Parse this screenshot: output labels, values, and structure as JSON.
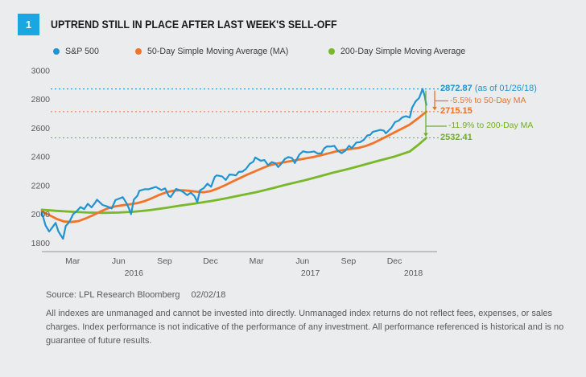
{
  "figure": {
    "number": "1"
  },
  "header": {
    "title": "UPTREND STILL IN PLACE AFTER LAST WEEK'S SELL-OFF"
  },
  "footer": {
    "source": "Source: LPL Research Bloomberg",
    "source_date": "02/02/18",
    "disclaimer": "All indexes are unmanaged and cannot be invested into directly. Unmanaged index returns do not reflect fees, expenses, or sales charges. Index performance is not indicative of the performance of any investment. All performance referenced is historical and is no guarantee of future results."
  },
  "colors": {
    "sp500": "#1e94d2",
    "ma50": "#f0742a",
    "ma200": "#79b829",
    "figure_box": "#18a7e0",
    "axis_text": "#58595b",
    "axis_line": "#a4a6a9",
    "background": "#ebeced"
  },
  "chart_data": {
    "type": "line",
    "title": "UPTREND STILL IN PLACE AFTER LAST WEEK'S SELL-OFF",
    "xlabel": "",
    "ylabel": "",
    "legend_position": "top",
    "grid": false,
    "x_domain": [
      2016.0,
      2018.12
    ],
    "y_domain": [
      1740,
      3000
    ],
    "y_ticks": [
      3000,
      2800,
      2600,
      2400,
      2200,
      2000,
      1800
    ],
    "x_ticks": [
      {
        "t": 2016.167,
        "label": "Mar"
      },
      {
        "t": 2016.417,
        "label": "Jun"
      },
      {
        "t": 2016.667,
        "label": "Sep"
      },
      {
        "t": 2016.917,
        "label": "Dec"
      },
      {
        "t": 2017.167,
        "label": "Mar"
      },
      {
        "t": 2017.417,
        "label": "Jun"
      },
      {
        "t": 2017.667,
        "label": "Sep"
      },
      {
        "t": 2017.917,
        "label": "Dec"
      }
    ],
    "year_labels": [
      {
        "t": 2016.5,
        "label": "2016"
      },
      {
        "t": 2017.46,
        "label": "2017"
      },
      {
        "t": 2018.02,
        "label": "2018"
      }
    ],
    "levels": [
      {
        "value": 2872.87,
        "color": "#1e94d2",
        "label": "2872.87",
        "suffix": " (as of 01/26/18)"
      },
      {
        "value": 2715.15,
        "color": "#ef7028",
        "label": "2715.15",
        "pct": "-5.5% to 50-Day MA"
      },
      {
        "value": 2532.41,
        "color": "#6fae27",
        "label": "2532.41",
        "pct": "-11.9% to 200-Day MA"
      }
    ],
    "series": [
      {
        "name": "S&P 500",
        "color": "#1e94d2",
        "width": 2.2,
        "points": [
          [
            2016.0,
            2012
          ],
          [
            2016.02,
            1922
          ],
          [
            2016.04,
            1880
          ],
          [
            2016.055,
            1906
          ],
          [
            2016.075,
            1940
          ],
          [
            2016.09,
            1880
          ],
          [
            2016.115,
            1829
          ],
          [
            2016.13,
            1918
          ],
          [
            2016.15,
            1948
          ],
          [
            2016.17,
            2000
          ],
          [
            2016.19,
            2022
          ],
          [
            2016.21,
            2050
          ],
          [
            2016.23,
            2036
          ],
          [
            2016.25,
            2073
          ],
          [
            2016.27,
            2048
          ],
          [
            2016.29,
            2081
          ],
          [
            2016.3,
            2102
          ],
          [
            2016.33,
            2065
          ],
          [
            2016.35,
            2057
          ],
          [
            2016.37,
            2047
          ],
          [
            2016.38,
            2040
          ],
          [
            2016.4,
            2099
          ],
          [
            2016.42,
            2109
          ],
          [
            2016.44,
            2119
          ],
          [
            2016.46,
            2078
          ],
          [
            2016.475,
            2037
          ],
          [
            2016.485,
            2001
          ],
          [
            2016.5,
            2103
          ],
          [
            2016.52,
            2130
          ],
          [
            2016.53,
            2164
          ],
          [
            2016.56,
            2175
          ],
          [
            2016.58,
            2174
          ],
          [
            2016.6,
            2183
          ],
          [
            2016.62,
            2190
          ],
          [
            2016.65,
            2169
          ],
          [
            2016.67,
            2180
          ],
          [
            2016.69,
            2128
          ],
          [
            2016.7,
            2120
          ],
          [
            2016.73,
            2177
          ],
          [
            2016.75,
            2168
          ],
          [
            2016.77,
            2154
          ],
          [
            2016.79,
            2133
          ],
          [
            2016.81,
            2151
          ],
          [
            2016.83,
            2126
          ],
          [
            2016.845,
            2085
          ],
          [
            2016.86,
            2167
          ],
          [
            2016.88,
            2182
          ],
          [
            2016.9,
            2213
          ],
          [
            2016.92,
            2192
          ],
          [
            2016.94,
            2260
          ],
          [
            2016.95,
            2271
          ],
          [
            2016.98,
            2264
          ],
          [
            2017.0,
            2239
          ],
          [
            2017.02,
            2277
          ],
          [
            2017.04,
            2275
          ],
          [
            2017.055,
            2271
          ],
          [
            2017.07,
            2295
          ],
          [
            2017.09,
            2297
          ],
          [
            2017.11,
            2316
          ],
          [
            2017.13,
            2351
          ],
          [
            2017.15,
            2367
          ],
          [
            2017.16,
            2396
          ],
          [
            2017.19,
            2373
          ],
          [
            2017.21,
            2378
          ],
          [
            2017.23,
            2342
          ],
          [
            2017.25,
            2363
          ],
          [
            2017.27,
            2355
          ],
          [
            2017.285,
            2329
          ],
          [
            2017.3,
            2349
          ],
          [
            2017.32,
            2384
          ],
          [
            2017.34,
            2399
          ],
          [
            2017.36,
            2391
          ],
          [
            2017.375,
            2357
          ],
          [
            2017.4,
            2416
          ],
          [
            2017.42,
            2439
          ],
          [
            2017.44,
            2432
          ],
          [
            2017.46,
            2433
          ],
          [
            2017.48,
            2438
          ],
          [
            2017.5,
            2423
          ],
          [
            2017.52,
            2425
          ],
          [
            2017.535,
            2459
          ],
          [
            2017.55,
            2473
          ],
          [
            2017.57,
            2472
          ],
          [
            2017.59,
            2477
          ],
          [
            2017.61,
            2441
          ],
          [
            2017.63,
            2426
          ],
          [
            2017.65,
            2443
          ],
          [
            2017.67,
            2477
          ],
          [
            2017.685,
            2461
          ],
          [
            2017.71,
            2500
          ],
          [
            2017.73,
            2502
          ],
          [
            2017.75,
            2519
          ],
          [
            2017.77,
            2549
          ],
          [
            2017.785,
            2553
          ],
          [
            2017.8,
            2575
          ],
          [
            2017.82,
            2581
          ],
          [
            2017.84,
            2588
          ],
          [
            2017.86,
            2582
          ],
          [
            2017.87,
            2564
          ],
          [
            2017.9,
            2602
          ],
          [
            2017.92,
            2642
          ],
          [
            2017.94,
            2652
          ],
          [
            2017.96,
            2676
          ],
          [
            2017.98,
            2683
          ],
          [
            2018.0,
            2674
          ],
          [
            2018.013,
            2743
          ],
          [
            2018.032,
            2786
          ],
          [
            2018.051,
            2810
          ],
          [
            2018.07,
            2873
          ],
          [
            2018.082,
            2822
          ],
          [
            2018.09,
            2762
          ]
        ]
      },
      {
        "name": "50-Day Simple Moving Average (MA)",
        "color": "#f0742a",
        "width": 2.8,
        "points": [
          [
            2016.0,
            2020
          ],
          [
            2016.04,
            1995
          ],
          [
            2016.08,
            1968
          ],
          [
            2016.12,
            1950
          ],
          [
            2016.16,
            1946
          ],
          [
            2016.2,
            1953
          ],
          [
            2016.24,
            1972
          ],
          [
            2016.28,
            1995
          ],
          [
            2016.32,
            2020
          ],
          [
            2016.36,
            2042
          ],
          [
            2016.4,
            2055
          ],
          [
            2016.44,
            2063
          ],
          [
            2016.48,
            2070
          ],
          [
            2016.52,
            2078
          ],
          [
            2016.56,
            2092
          ],
          [
            2016.6,
            2113
          ],
          [
            2016.64,
            2136
          ],
          [
            2016.68,
            2155
          ],
          [
            2016.72,
            2165
          ],
          [
            2016.76,
            2168
          ],
          [
            2016.8,
            2164
          ],
          [
            2016.84,
            2158
          ],
          [
            2016.88,
            2153
          ],
          [
            2016.92,
            2162
          ],
          [
            2016.96,
            2182
          ],
          [
            2017.0,
            2205
          ],
          [
            2017.04,
            2230
          ],
          [
            2017.08,
            2254
          ],
          [
            2017.12,
            2278
          ],
          [
            2017.16,
            2300
          ],
          [
            2017.2,
            2322
          ],
          [
            2017.24,
            2342
          ],
          [
            2017.28,
            2354
          ],
          [
            2017.32,
            2363
          ],
          [
            2017.36,
            2372
          ],
          [
            2017.4,
            2381
          ],
          [
            2017.44,
            2390
          ],
          [
            2017.48,
            2400
          ],
          [
            2017.52,
            2412
          ],
          [
            2017.56,
            2425
          ],
          [
            2017.6,
            2438
          ],
          [
            2017.64,
            2448
          ],
          [
            2017.68,
            2455
          ],
          [
            2017.72,
            2462
          ],
          [
            2017.76,
            2475
          ],
          [
            2017.8,
            2495
          ],
          [
            2017.84,
            2520
          ],
          [
            2017.88,
            2546
          ],
          [
            2017.92,
            2572
          ],
          [
            2017.96,
            2598
          ],
          [
            2018.0,
            2625
          ],
          [
            2018.045,
            2668
          ],
          [
            2018.09,
            2715
          ]
        ]
      },
      {
        "name": "200-Day Simple Moving Average",
        "color": "#79b829",
        "width": 2.8,
        "points": [
          [
            2016.0,
            2032
          ],
          [
            2016.08,
            2024
          ],
          [
            2016.17,
            2017
          ],
          [
            2016.25,
            2012
          ],
          [
            2016.33,
            2010
          ],
          [
            2016.42,
            2012
          ],
          [
            2016.5,
            2018
          ],
          [
            2016.58,
            2028
          ],
          [
            2016.67,
            2044
          ],
          [
            2016.75,
            2060
          ],
          [
            2016.83,
            2075
          ],
          [
            2016.92,
            2092
          ],
          [
            2017.0,
            2111
          ],
          [
            2017.08,
            2132
          ],
          [
            2017.17,
            2155
          ],
          [
            2017.25,
            2180
          ],
          [
            2017.33,
            2207
          ],
          [
            2017.42,
            2234
          ],
          [
            2017.5,
            2261
          ],
          [
            2017.58,
            2289
          ],
          [
            2017.67,
            2317
          ],
          [
            2017.75,
            2345
          ],
          [
            2017.83,
            2373
          ],
          [
            2017.92,
            2403
          ],
          [
            2018.0,
            2437
          ],
          [
            2018.045,
            2482
          ],
          [
            2018.09,
            2532
          ]
        ]
      }
    ]
  }
}
